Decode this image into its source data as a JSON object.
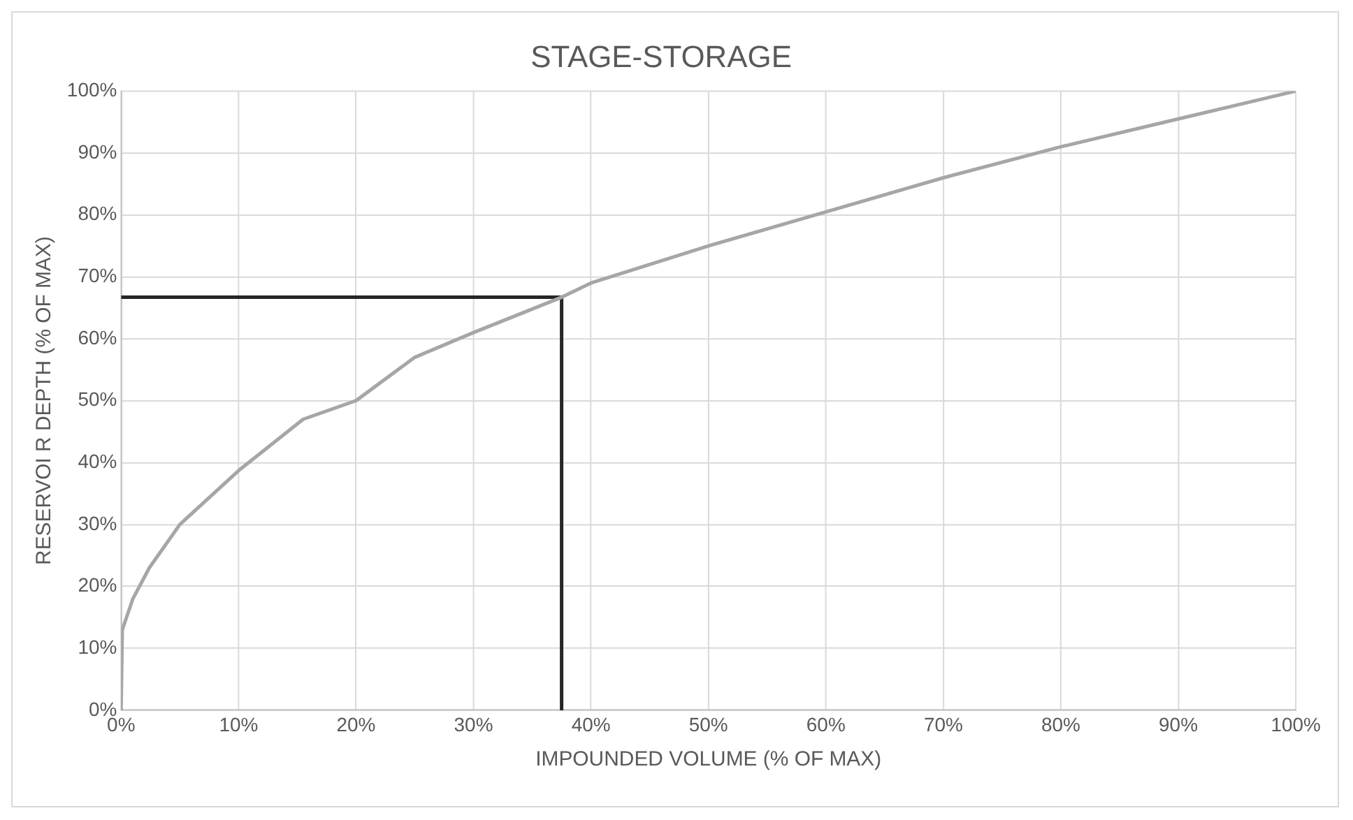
{
  "chart_data": {
    "type": "line",
    "title": "STAGE-STORAGE",
    "xlabel": "IMPOUNDED VOLUME (% OF MAX)",
    "ylabel": "RESERVOI R DEPTH (% OF MAX)",
    "xlim": [
      0,
      100
    ],
    "ylim": [
      0,
      100
    ],
    "xticks": [
      {
        "value": 0,
        "label": "0%"
      },
      {
        "value": 10,
        "label": "10%"
      },
      {
        "value": 20,
        "label": "20%"
      },
      {
        "value": 30,
        "label": "30%"
      },
      {
        "value": 40,
        "label": "40%"
      },
      {
        "value": 50,
        "label": "50%"
      },
      {
        "value": 60,
        "label": "60%"
      },
      {
        "value": 70,
        "label": "70%"
      },
      {
        "value": 80,
        "label": "80%"
      },
      {
        "value": 90,
        "label": "90%"
      },
      {
        "value": 100,
        "label": "100%"
      }
    ],
    "yticks": [
      {
        "value": 0,
        "label": "0%"
      },
      {
        "value": 10,
        "label": "10%"
      },
      {
        "value": 20,
        "label": "20%"
      },
      {
        "value": 30,
        "label": "30%"
      },
      {
        "value": 40,
        "label": "40%"
      },
      {
        "value": 50,
        "label": "50%"
      },
      {
        "value": 60,
        "label": "60%"
      },
      {
        "value": 70,
        "label": "70%"
      },
      {
        "value": 80,
        "label": "80%"
      },
      {
        "value": 90,
        "label": "90%"
      },
      {
        "value": 100,
        "label": "100%"
      }
    ],
    "grid": true,
    "legend": false,
    "marker": "none",
    "line_style": "solid",
    "series": [
      {
        "color": "#a6a6a6",
        "x": [
          0,
          0.1,
          1,
          2.4,
          5,
          10,
          15.5,
          20,
          25,
          30,
          37.5,
          40,
          50,
          60,
          70,
          80,
          90,
          100
        ],
        "values": [
          0,
          13,
          18,
          23,
          30,
          38.7,
          47,
          50,
          57,
          61,
          66.7,
          69,
          75,
          80.5,
          86,
          91,
          95.5,
          100
        ]
      },
      {
        "color": "#262626",
        "x": [
          0,
          37.5,
          37.5
        ],
        "values": [
          66.7,
          66.7,
          0
        ]
      }
    ]
  }
}
